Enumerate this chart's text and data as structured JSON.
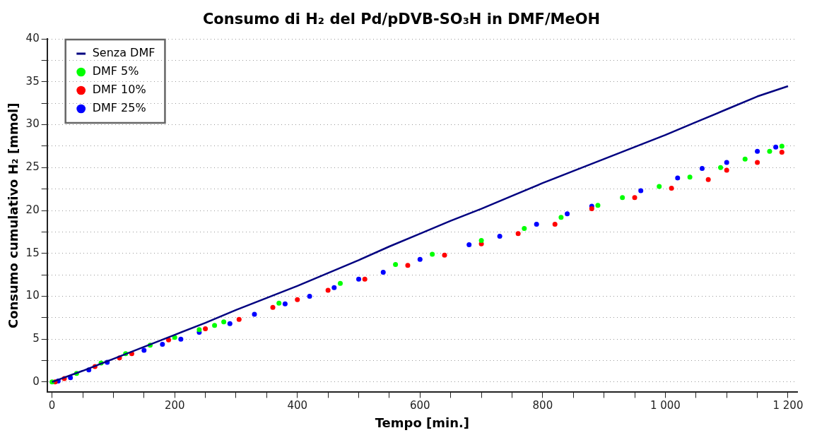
{
  "chart_data": {
    "type": "line",
    "title": "Consumo di H₂ del Pd/pDVB-SO₃H in DMF/MeOH",
    "xlabel": "Tempo [min.]",
    "ylabel": "Consumo cumulativo H₂ [mmol]",
    "xlim": [
      -8,
      1215
    ],
    "ylim": [
      -1.2,
      40
    ],
    "xticks": [
      0,
      {
        "value": 50,
        "label": null
      },
      {
        "value": 100,
        "label": null
      },
      {
        "value": 150,
        "label": null
      },
      200,
      {
        "value": 250,
        "label": null
      },
      {
        "value": 300,
        "label": null
      },
      {
        "value": 350,
        "label": null
      },
      400,
      {
        "value": 450,
        "label": null
      },
      {
        "value": 500,
        "label": null
      },
      {
        "value": 550,
        "label": null
      },
      600,
      {
        "value": 650,
        "label": null
      },
      {
        "value": 700,
        "label": null
      },
      {
        "value": 750,
        "label": null
      },
      800,
      {
        "value": 850,
        "label": null
      },
      {
        "value": 900,
        "label": null
      },
      {
        "value": 950,
        "label": null
      },
      {
        "value": 1000,
        "label": "1 000"
      },
      {
        "value": 1050,
        "label": null
      },
      {
        "value": 1100,
        "label": null
      },
      {
        "value": 1150,
        "label": null
      },
      {
        "value": 1200,
        "label": "1 200"
      }
    ],
    "yticks": [
      0,
      {
        "value": 2.5,
        "label": null
      },
      5,
      {
        "value": 7.5,
        "label": null
      },
      10,
      {
        "value": 12.5,
        "label": null
      },
      15,
      {
        "value": 17.5,
        "label": null
      },
      20,
      {
        "value": 22.5,
        "label": null
      },
      25,
      {
        "value": 27.5,
        "label": null
      },
      30,
      {
        "value": 32.5,
        "label": null
      },
      35,
      {
        "value": 37.5,
        "label": null
      },
      40
    ],
    "grid": "y",
    "legend": "top left",
    "series": [
      {
        "name": "Senza DMF",
        "type": "line",
        "color": "#000080",
        "marker": "none",
        "x": [
          0,
          50,
          100,
          150,
          200,
          250,
          300,
          350,
          400,
          450,
          500,
          550,
          600,
          650,
          700,
          750,
          800,
          850,
          900,
          950,
          1000,
          1050,
          1100,
          1150,
          1200
        ],
        "values": [
          0,
          1.3,
          2.7,
          4.1,
          5.5,
          6.9,
          8.4,
          9.8,
          11.2,
          12.7,
          14.2,
          15.8,
          17.3,
          18.8,
          20.2,
          21.7,
          23.2,
          24.6,
          26.0,
          27.4,
          28.8,
          30.3,
          31.8,
          33.3,
          34.5
        ]
      },
      {
        "name": "DMF 5%",
        "type": "scatter",
        "color": "#00ff00",
        "marker": "circle",
        "x": [
          0,
          40,
          80,
          120,
          160,
          200,
          240,
          265,
          280,
          370,
          470,
          560,
          620,
          700,
          770,
          830,
          890,
          930,
          990,
          1040,
          1090,
          1130,
          1170,
          1190
        ],
        "values": [
          0,
          1.0,
          2.2,
          3.3,
          4.3,
          5.2,
          6.1,
          6.6,
          7.0,
          9.2,
          11.5,
          13.7,
          14.9,
          16.5,
          17.9,
          19.2,
          20.6,
          21.5,
          22.8,
          23.9,
          25.0,
          26.0,
          26.9,
          27.5
        ]
      },
      {
        "name": "DMF 10%",
        "type": "scatter",
        "color": "#ff0000",
        "marker": "circle",
        "x": [
          5,
          20,
          70,
          110,
          130,
          190,
          250,
          305,
          360,
          400,
          450,
          510,
          580,
          640,
          700,
          760,
          820,
          880,
          950,
          1010,
          1070,
          1100,
          1150,
          1190
        ],
        "values": [
          0,
          0.4,
          1.8,
          2.8,
          3.3,
          4.9,
          6.2,
          7.3,
          8.7,
          9.6,
          10.7,
          12.0,
          13.6,
          14.8,
          16.1,
          17.3,
          18.4,
          20.2,
          21.5,
          22.6,
          23.6,
          24.7,
          25.6,
          26.8
        ]
      },
      {
        "name": "DMF 25%",
        "type": "scatter",
        "color": "#0000ff",
        "marker": "circle",
        "x": [
          10,
          30,
          60,
          90,
          150,
          180,
          210,
          240,
          290,
          330,
          380,
          420,
          460,
          500,
          540,
          600,
          680,
          730,
          790,
          840,
          880,
          960,
          1020,
          1060,
          1100,
          1150,
          1180
        ],
        "values": [
          0.1,
          0.5,
          1.4,
          2.3,
          3.7,
          4.4,
          5.0,
          5.8,
          6.8,
          7.9,
          9.1,
          10.0,
          11.0,
          12.0,
          12.8,
          14.3,
          16.0,
          17.0,
          18.4,
          19.6,
          20.5,
          22.3,
          23.8,
          24.9,
          25.6,
          26.9,
          27.4
        ]
      }
    ]
  }
}
